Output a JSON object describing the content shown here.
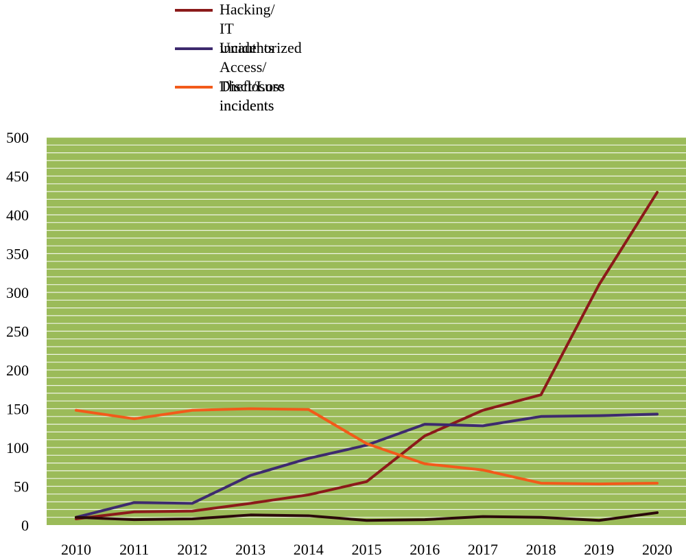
{
  "chart_data": {
    "type": "line",
    "title": "",
    "xlabel": "",
    "ylabel": "",
    "x": [
      "2010",
      "2011",
      "2012",
      "2013",
      "2014",
      "2015",
      "2016",
      "2017",
      "2018",
      "2019",
      "2020"
    ],
    "ylim": [
      0,
      500
    ],
    "yticks": [
      "0",
      "50",
      "100",
      "150",
      "200",
      "250",
      "300",
      "350",
      "400",
      "450",
      "500"
    ],
    "grid": true,
    "legend_position": "top",
    "plot_background": "#9BBB59",
    "series": [
      {
        "name": "Hacking/ IT incidents",
        "color": "#8B1A1A",
        "values": [
          8,
          17,
          18,
          28,
          39,
          56,
          115,
          148,
          168,
          310,
          429
        ]
      },
      {
        "name": "Unauthorized Access/ Disclosure incidents",
        "color": "#3D2A6E",
        "values": [
          10,
          29,
          28,
          64,
          86,
          103,
          130,
          128,
          140,
          141,
          143
        ]
      },
      {
        "name": "Theft/Loss\nincidents",
        "color": "#F25A1A",
        "values": [
          148,
          137,
          148,
          150,
          149,
          105,
          79,
          71,
          54,
          53,
          54
        ]
      },
      {
        "name": "",
        "color": "#2B0A0A",
        "values": [
          10,
          7,
          8,
          13,
          12,
          6,
          7,
          11,
          10,
          6,
          16
        ]
      }
    ]
  }
}
